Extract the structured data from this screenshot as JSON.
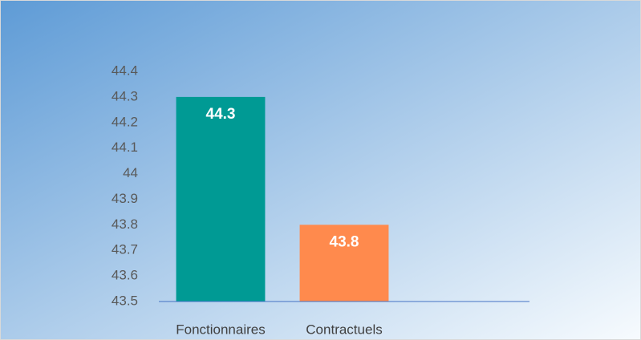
{
  "chart_data": {
    "type": "bar",
    "categories": [
      "Fonctionnaires",
      "Contractuels",
      null
    ],
    "values": [
      44.3,
      43.8,
      null
    ],
    "colors": [
      "#009a94",
      "#ff8a4d",
      null
    ],
    "ylim": [
      43.5,
      44.4
    ],
    "yticks": [
      43.5,
      43.6,
      43.7,
      43.8,
      43.9,
      44,
      44.1,
      44.2,
      44.3,
      44.4
    ],
    "grid": false
  }
}
